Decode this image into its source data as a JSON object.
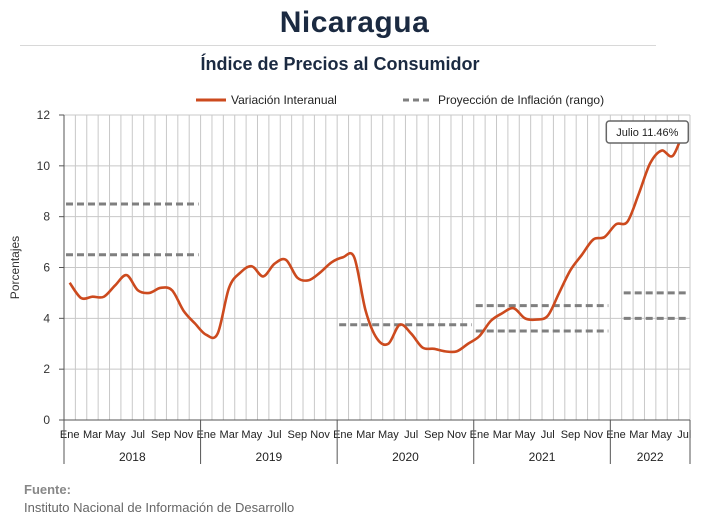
{
  "header": {
    "title": "Nicaragua",
    "subtitle": "Índice de Precios al Consumidor"
  },
  "source": {
    "label": "Fuente:",
    "text": "Instituto Nacional de Información de  Desarrollo"
  },
  "colors": {
    "line": "#cc4a1e",
    "dashed": "#7f7f7f",
    "grid": "#c8c8c8",
    "axis": "#555555"
  },
  "chart_data": {
    "type": "line",
    "title": "Índice de Precios al Consumidor",
    "ylabel": "Porcentajes",
    "ylim": [
      0,
      12
    ],
    "yticks": [
      "0",
      "2",
      "4",
      "6",
      "8",
      "10",
      "12"
    ],
    "grid": true,
    "legend_position": "top",
    "month_ticks": [
      "Ene",
      "Mar",
      "May",
      "Jul",
      "Sep",
      "Nov",
      "Ene",
      "Mar",
      "May",
      "Jul",
      "Sep",
      "Nov",
      "Ene",
      "Mar",
      "May",
      "Jul",
      "Sep",
      "Nov",
      "Ene",
      "Mar",
      "May",
      "Jul",
      "Sep",
      "Nov",
      "Ene",
      "Mar",
      "May",
      "Jul"
    ],
    "years": [
      "2018",
      "2019",
      "2020",
      "2021",
      "2022"
    ],
    "x_start": "2018-01",
    "x_end": "2022-07",
    "series": [
      {
        "name": "Variación Interanual",
        "style": "solid",
        "values": [
          5.4,
          4.8,
          4.85,
          4.85,
          5.3,
          5.7,
          5.1,
          5.0,
          5.2,
          5.1,
          4.3,
          3.8,
          3.35,
          3.4,
          5.2,
          5.8,
          6.05,
          5.65,
          6.15,
          6.3,
          5.6,
          5.5,
          5.8,
          6.2,
          6.4,
          6.4,
          4.3,
          3.2,
          3.0,
          3.75,
          3.4,
          2.85,
          2.8,
          2.7,
          2.7,
          3.0,
          3.3,
          3.9,
          4.2,
          4.4,
          4.0,
          3.95,
          4.1,
          5.0,
          5.9,
          6.5,
          7.1,
          7.2,
          7.7,
          7.8,
          8.9,
          10.1,
          10.6,
          10.4,
          11.46
        ]
      },
      {
        "name": "Proyección de Inflación (rango)",
        "style": "dashed",
        "segments": [
          {
            "from": "2018-01",
            "to": "2018-12",
            "value": 8.5
          },
          {
            "from": "2018-01",
            "to": "2018-12",
            "value": 6.5
          },
          {
            "from": "2020-01",
            "to": "2020-12",
            "value": 3.75
          },
          {
            "from": "2021-01",
            "to": "2021-12",
            "value": 4.5
          },
          {
            "from": "2021-01",
            "to": "2021-12",
            "value": 3.5
          },
          {
            "from": "2022-02",
            "to": "2022-07",
            "value": 5.0
          },
          {
            "from": "2022-02",
            "to": "2022-07",
            "value": 4.0
          }
        ]
      }
    ],
    "annotation": {
      "text": "Julio 11.46%",
      "at": "2022-07",
      "value": 11.46
    }
  }
}
